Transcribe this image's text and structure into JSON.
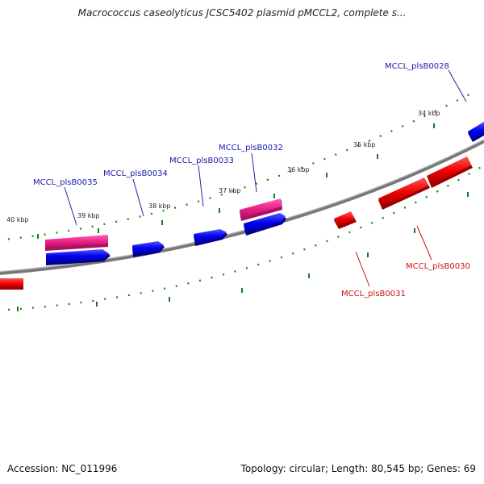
{
  "title": "Macrococcus caseolyticus JCSC5402 plasmid pMCCL2, complete s...",
  "footer": {
    "accession": "Accession: NC_011996",
    "summary": "Topology: circular; Length: 80,545 bp; Genes: 69"
  },
  "colors": {
    "forward_gene": "#0000ee",
    "reverse_gene": "#ee0000",
    "pink_feature": "#ee2288",
    "backbone": "#888888",
    "tick": "#1a7a1a",
    "label_forward": "#1a1aaa",
    "label_reverse": "#cc1111"
  },
  "scale_labels": [
    "34 kbp",
    "35 kbp",
    "36 kbp",
    "37 kbp",
    "38 kbp",
    "39 kbp",
    "40 kbp"
  ],
  "gene_labels_forward": [
    "MCCL_plsB0028",
    "MCCL_plsB0032",
    "MCCL_plsB0033",
    "MCCL_plsB0034",
    "MCCL_plsB0035"
  ],
  "gene_labels_reverse": [
    "MCCL_plsB0030",
    "MCCL_plsB0031"
  ]
}
